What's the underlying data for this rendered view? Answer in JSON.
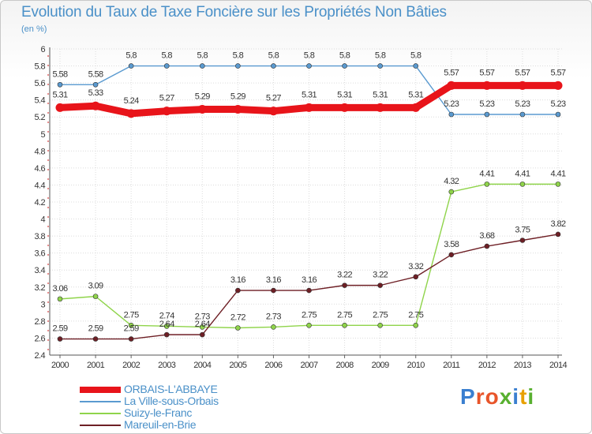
{
  "title": "Evolution du Taux de Taxe Foncière sur les Propriétés Non Bâties",
  "unit": "(en %)",
  "logo": {
    "text": "Proxiti",
    "colors": [
      "#3a7fd0",
      "#e8552a",
      "#e8552a",
      "#58b030",
      "#3a7fd0",
      "#e8a000",
      "#58b030"
    ]
  },
  "chart_data": {
    "type": "line",
    "title": "Evolution du Taux de Taxe Foncière sur les Propriétés Non Bâties",
    "ylabel": "(en %)",
    "xlabel": "",
    "categories": [
      "2000",
      "2001",
      "2002",
      "2003",
      "2004",
      "2005",
      "2006",
      "2007",
      "2008",
      "2009",
      "2010",
      "2011",
      "2012",
      "2013",
      "2014"
    ],
    "ylim": [
      2.4,
      6
    ],
    "yticks": [
      "2.4",
      "2.6",
      "2.8",
      "3",
      "3.2",
      "3.4",
      "3.6",
      "3.8",
      "4",
      "4.2",
      "4.4",
      "4.6",
      "4.8",
      "5",
      "5.2",
      "5.4",
      "5.6",
      "5.8",
      "6"
    ],
    "grid": true,
    "legend_position": "bottom-left",
    "series": [
      {
        "name": "ORBAIS-L'ABBAYE",
        "color": "#e8141a",
        "width": 9,
        "marker": 5.5,
        "label_offset": -13,
        "values": [
          5.31,
          5.33,
          5.24,
          5.27,
          5.29,
          5.29,
          5.27,
          5.31,
          5.31,
          5.31,
          5.31,
          5.57,
          5.57,
          5.57,
          5.57
        ],
        "labels": [
          "5.31",
          "5.33",
          "5.24",
          "5.27",
          "5.29",
          "5.29",
          "5.27",
          "5.31",
          "5.31",
          "5.31",
          "5.31",
          "5.57",
          "5.57",
          "5.57",
          "5.57"
        ]
      },
      {
        "name": "La Ville-sous-Orbais",
        "color": "#5a9ad0",
        "width": 1.4,
        "marker": 3,
        "label_offset": -10,
        "values": [
          5.58,
          5.58,
          5.8,
          5.8,
          5.8,
          5.8,
          5.8,
          5.8,
          5.8,
          5.8,
          5.8,
          5.23,
          5.23,
          5.23,
          5.23
        ],
        "labels": [
          "5.58",
          "5.58",
          "5.8",
          "5.8",
          "5.8",
          "5.8",
          "5.8",
          "5.8",
          "5.8",
          "5.8",
          "5.8",
          "5.23",
          "5.23",
          "5.23",
          "5.23"
        ]
      },
      {
        "name": "Suizy-le-Franc",
        "color": "#8fd44a",
        "width": 1.4,
        "marker": 3,
        "label_offset": -10,
        "values": [
          3.06,
          3.09,
          2.75,
          2.74,
          2.73,
          2.72,
          2.73,
          2.75,
          2.75,
          2.75,
          2.75,
          4.32,
          4.41,
          4.41,
          4.41
        ],
        "labels": [
          "3.06",
          "3.09",
          "2.75",
          "2.74",
          "2.73",
          "2.72",
          "2.73",
          "2.75",
          "2.75",
          "2.75",
          "2.75",
          "4.32",
          "4.41",
          "4.41",
          "4.41"
        ]
      },
      {
        "name": "Mareuil-en-Brie",
        "color": "#6e1f25",
        "width": 1.4,
        "marker": 3,
        "label_offset": -10,
        "values": [
          2.59,
          2.59,
          2.59,
          2.64,
          2.64,
          3.16,
          3.16,
          3.16,
          3.22,
          3.22,
          3.32,
          3.58,
          3.68,
          3.75,
          3.82
        ],
        "labels": [
          "2.59",
          "2.59",
          "2.59",
          "2.64",
          "2.64",
          "3.16",
          "3.16",
          "3.16",
          "3.22",
          "3.22",
          "3.32",
          "3.58",
          "3.68",
          "3.75",
          "3.82"
        ]
      }
    ]
  }
}
